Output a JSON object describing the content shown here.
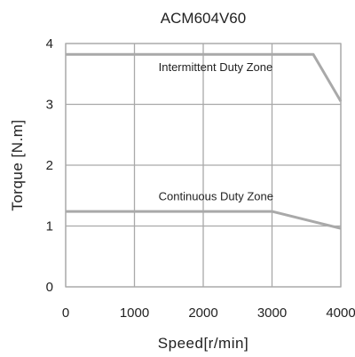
{
  "chart_data": {
    "type": "line",
    "title": "ACM604V60",
    "xlabel": "Speed[r/min]",
    "ylabel": "Torque [N.m]",
    "xlim": [
      0,
      4000
    ],
    "ylim": [
      0,
      4
    ],
    "xticks": [
      0,
      1000,
      2000,
      3000,
      4000
    ],
    "yticks": [
      0,
      1,
      2,
      3,
      4
    ],
    "grid": true,
    "series": [
      {
        "x": [
          0,
          3600,
          4000
        ],
        "y": [
          3.82,
          3.82,
          3.05
        ]
      },
      {
        "x": [
          0,
          3000,
          4000
        ],
        "y": [
          1.24,
          1.24,
          0.96
        ]
      }
    ],
    "annotations": [
      {
        "text": "Intermittent Duty Zone",
        "x": 1350,
        "y": 3.55
      },
      {
        "text": "Continuous Duty Zone",
        "x": 1350,
        "y": 1.42
      }
    ],
    "colors": {
      "line": "#a9a9a9",
      "grid": "#a9a9a9",
      "text": "#222222"
    }
  }
}
